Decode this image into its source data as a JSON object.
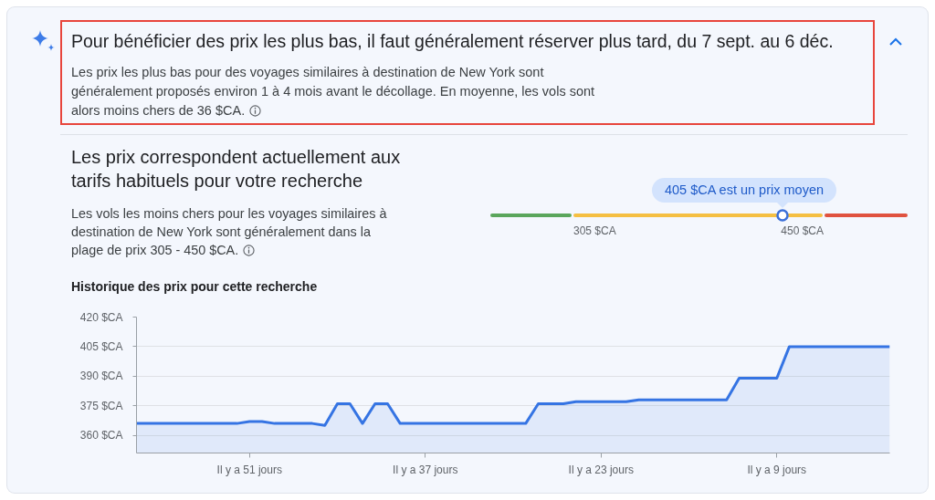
{
  "chart_data": [
    {
      "type": "other",
      "title": "Pour bénéficier des prix les plus bas, il faut généralement réserver plus tard, du 7 sept. au 6 déc.",
      "annotations": [
        "Les prix les plus bas pour des voyages similaires à destination de New York sont généralement proposés environ 1 à 4 mois avant le décollage. En moyenne, les vols sont alors moins chers de 36 $CA."
      ]
    },
    {
      "type": "other",
      "title": "Les prix correspondent actuellement aux tarifs habituels pour votre recherche",
      "annotations": [
        "Les vols les moins chers pour les voyages similaires à destination de New York sont généralement dans la plage de prix 305 - 450 $CA.",
        "405 $CA est un prix moyen",
        "305 $CA",
        "450 $CA"
      ]
    },
    {
      "type": "area",
      "title": "Historique des prix pour cette recherche",
      "categories": [
        null,
        null,
        null,
        null,
        null,
        null,
        null,
        null,
        null,
        "Il y a 51 jours",
        null,
        null,
        null,
        null,
        null,
        null,
        null,
        null,
        null,
        null,
        null,
        null,
        null,
        "Il y a 37 jours",
        null,
        null,
        null,
        null,
        null,
        null,
        null,
        null,
        null,
        null,
        null,
        null,
        null,
        "Il y a 23 jours",
        null,
        null,
        null,
        null,
        null,
        null,
        null,
        null,
        null,
        null,
        null,
        null,
        null,
        "Il y a 9 jours",
        null,
        null,
        null,
        null,
        null,
        null,
        null,
        null,
        null
      ],
      "series": [
        {
          "color": "#3574e3",
          "values": [
            366,
            366,
            366,
            366,
            366,
            366,
            366,
            366,
            366,
            367,
            367,
            366,
            366,
            366,
            366,
            365,
            376,
            376,
            366,
            376,
            376,
            366,
            366,
            366,
            366,
            366,
            366,
            366,
            366,
            366,
            366,
            366,
            376,
            376,
            376,
            377,
            377,
            377,
            377,
            377,
            378,
            378,
            378,
            378,
            378,
            378,
            378,
            378,
            389,
            389,
            389,
            389,
            405,
            405,
            405,
            405,
            405,
            405,
            405,
            405,
            405
          ]
        }
      ],
      "ylim": [
        351,
        420
      ],
      "yticks": [
        {
          "value": 360,
          "label": "360 $CA"
        },
        {
          "value": 375,
          "label": "375 $CA"
        },
        {
          "value": 390,
          "label": "390 $CA"
        },
        {
          "value": 405,
          "label": "405 $CA"
        },
        {
          "value": 420,
          "label": "420 $CA"
        }
      ],
      "grid": "y"
    }
  ]
}
